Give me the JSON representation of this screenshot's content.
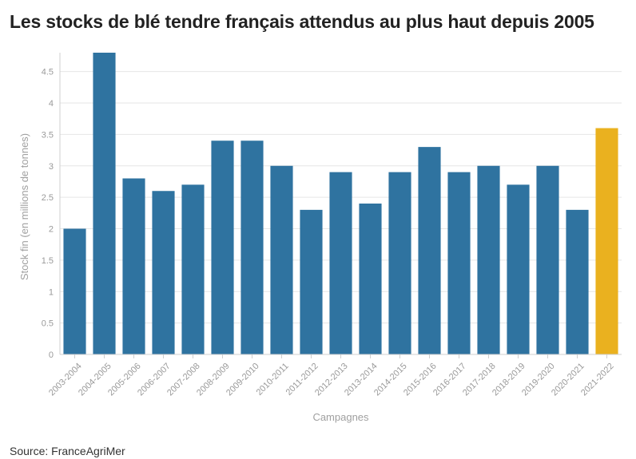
{
  "title": "Les stocks de blé tendre français attendus au plus haut depuis 2005",
  "source": "Source: FranceAgriMer",
  "colors": {
    "bar": "#2f73a0",
    "highlight": "#eab11f",
    "grid": "#e6e6e6",
    "axis": "#cfcfcf",
    "text": "#9a9a9a"
  },
  "chart_data": {
    "type": "bar",
    "title": "Les stocks de blé tendre français attendus au plus haut depuis 2005",
    "xlabel": "Campagnes",
    "ylabel": "Stock fin (en millions de tonnes)",
    "ylim": [
      0,
      4.8
    ],
    "yticks": [
      0,
      0.5,
      1,
      1.5,
      2,
      2.5,
      3,
      3.5,
      4,
      4.5
    ],
    "grid": true,
    "categories": [
      "2003-2004",
      "2004-2005",
      "2005-2006",
      "2006-2007",
      "2007-2008",
      "2008-2009",
      "2009-2010",
      "2010-2011",
      "2011-2012",
      "2012-2013",
      "2013-2014",
      "2014-2015",
      "2015-2016",
      "2016-2017",
      "2017-2018",
      "2018-2019",
      "2019-2020",
      "2020-2021",
      "2021-2022"
    ],
    "values": [
      2.0,
      4.8,
      2.8,
      2.6,
      2.7,
      3.4,
      3.4,
      3.0,
      2.3,
      2.9,
      2.4,
      2.9,
      3.3,
      2.9,
      3.0,
      2.7,
      3.0,
      2.3,
      3.6
    ],
    "highlight_category": "2021-2022"
  }
}
